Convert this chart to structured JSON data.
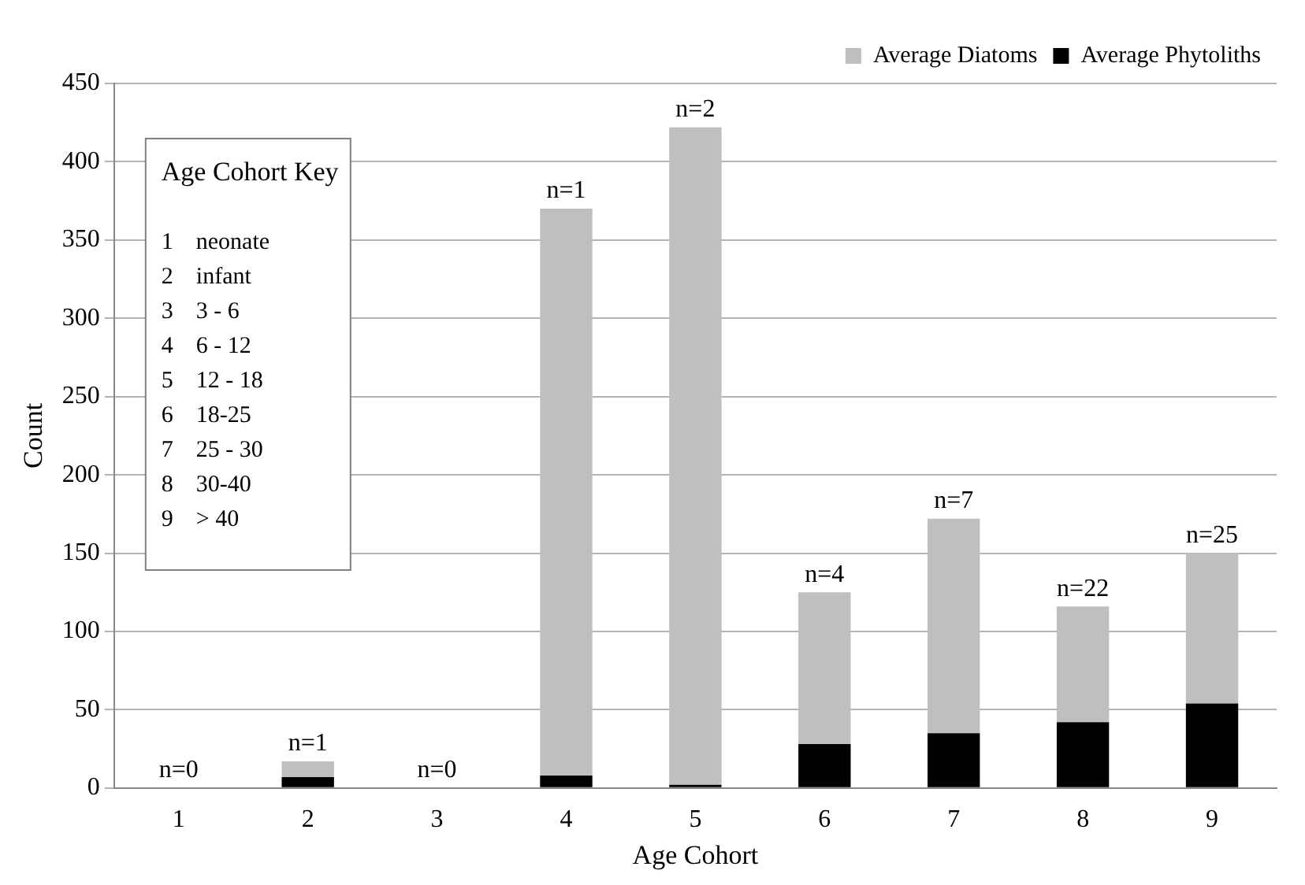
{
  "chart_data": {
    "type": "bar",
    "xlabel": "Age Cohort",
    "ylabel": "Count",
    "categories": [
      "1",
      "2",
      "3",
      "4",
      "5",
      "6",
      "7",
      "8",
      "9"
    ],
    "series": [
      {
        "name": "Average Phytoliths",
        "color": "#000000",
        "values": [
          0,
          7,
          0,
          8,
          2,
          28,
          35,
          42,
          54
        ]
      },
      {
        "name": "Average Diatoms",
        "color": "#bfbfbf",
        "values": [
          0,
          10,
          0,
          362,
          420,
          97,
          137,
          74,
          96
        ]
      }
    ],
    "stacked": true,
    "ylim": [
      0,
      450
    ],
    "yticks": [
      0,
      50,
      100,
      150,
      200,
      250,
      300,
      350,
      400,
      450
    ],
    "grid": "y",
    "legend": "top right",
    "annotations": [
      {
        "text": "n=0",
        "x": "1",
        "y": 0
      },
      {
        "text": "n=1",
        "x": "2",
        "y": 17
      },
      {
        "text": "n=0",
        "x": "3",
        "y": 0
      },
      {
        "text": "n=1",
        "x": "4",
        "y": 370
      },
      {
        "text": "n=2",
        "x": "5",
        "y": 422
      },
      {
        "text": "n=4",
        "x": "6",
        "y": 125
      },
      {
        "text": "n=7",
        "x": "7",
        "y": 172
      },
      {
        "text": "n=22",
        "x": "8",
        "y": 116
      },
      {
        "text": "n=25",
        "x": "9",
        "y": 150
      },
      "Age Cohort Key",
      "1\tneonate",
      "2\tinfant",
      "3\t3 - 6",
      "4\t6 - 12",
      "5\t12 - 18",
      "6\t18-25",
      "7\t25 - 30",
      "8\t30-40",
      "9\t> 40"
    ]
  }
}
